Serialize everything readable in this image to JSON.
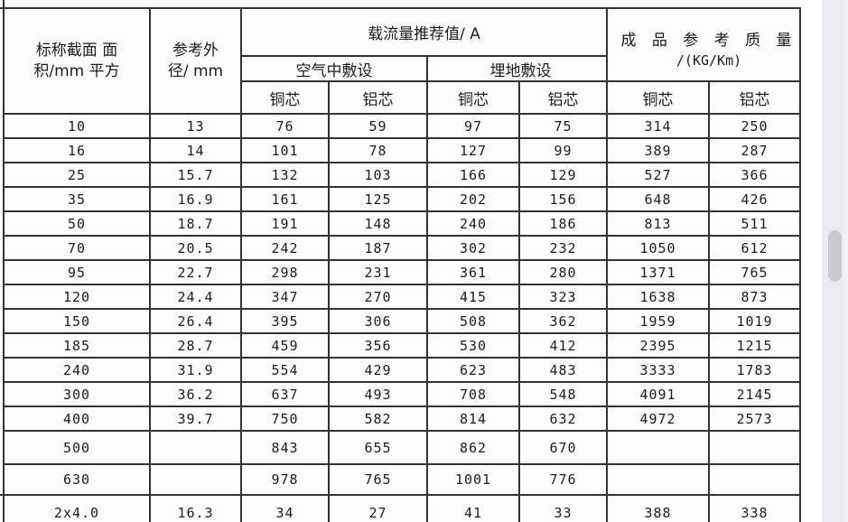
{
  "page": {
    "background_color": "#ffffff",
    "border_color": "#333333",
    "text_color": "#1c1c1c"
  },
  "scrollbar": {
    "track_color": "#e9ecf1",
    "thumb_color": "#c7cbd1"
  },
  "table": {
    "header": {
      "size_line1": "标称截面 面",
      "size_line2": "积/mm 平方",
      "od_line1": "参考外",
      "od_line2": "径/ mm",
      "ampacity_title": "载流量推荐值/ A",
      "air_label": "空气中敷设",
      "ground_label": "埋地敷设",
      "mass_line1": "成 品 参 考 质 量",
      "mass_line2": "/(KG/Km)",
      "copper_label": "铜芯",
      "aluminum_label": "铝芯"
    },
    "rows": [
      [
        "10",
        "13",
        "76",
        "59",
        "97",
        "75",
        "314",
        "250"
      ],
      [
        "16",
        "14",
        "101",
        "78",
        "127",
        "99",
        "389",
        "287"
      ],
      [
        "25",
        "15.7",
        "132",
        "103",
        "166",
        "129",
        "527",
        "366"
      ],
      [
        "35",
        "16.9",
        "161",
        "125",
        "202",
        "156",
        "648",
        "426"
      ],
      [
        "50",
        "18.7",
        "191",
        "148",
        "240",
        "186",
        "813",
        "511"
      ],
      [
        "70",
        "20.5",
        "242",
        "187",
        "302",
        "232",
        "1050",
        "612"
      ],
      [
        "95",
        "22.7",
        "298",
        "231",
        "361",
        "280",
        "1371",
        "765"
      ],
      [
        "120",
        "24.4",
        "347",
        "270",
        "415",
        "323",
        "1638",
        "873"
      ],
      [
        "150",
        "26.4",
        "395",
        "306",
        "508",
        "362",
        "1959",
        "1019"
      ],
      [
        "185",
        "28.7",
        "459",
        "356",
        "530",
        "412",
        "2395",
        "1215"
      ],
      [
        "240",
        "31.9",
        "554",
        "429",
        "623",
        "483",
        "3333",
        "1783"
      ],
      [
        "300",
        "36.2",
        "637",
        "493",
        "708",
        "548",
        "4091",
        "2145"
      ],
      [
        "400",
        "39.7",
        "750",
        "582",
        "814",
        "632",
        "4972",
        "2573"
      ],
      [
        "500",
        "",
        "843",
        "655",
        "862",
        "670",
        "",
        ""
      ],
      [
        "630",
        "",
        "978",
        "765",
        "1001",
        "776",
        "",
        ""
      ],
      [
        "2x4.0",
        "16.3",
        "34",
        "27",
        "41",
        "33",
        "388",
        "338"
      ]
    ]
  }
}
